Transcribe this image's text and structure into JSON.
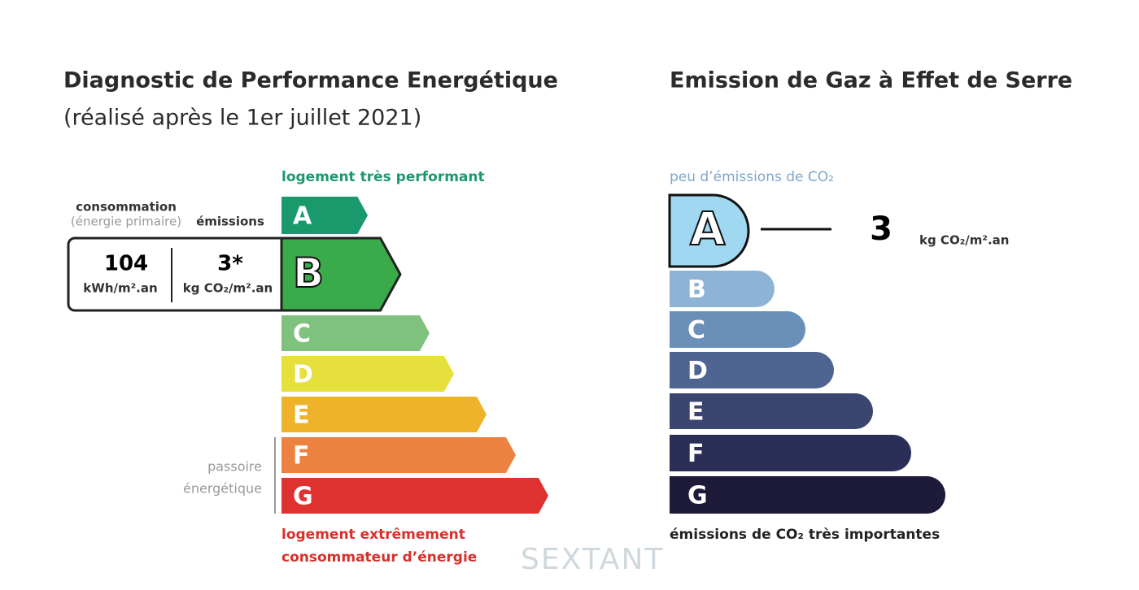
{
  "dpe": {
    "title": "Diagnostic de Performance Energétique",
    "subtitle": "(réalisé après le 1er juillet 2021)",
    "top_label": "logement très performant",
    "consumption_label": "consommation",
    "consumption_sublabel": "(énergie primaire)",
    "emissions_label": "émissions",
    "consumption_value": "104",
    "consumption_unit": "kWh/m².an",
    "emissions_value": "3*",
    "emissions_unit": "kg CO₂/m².an",
    "classes": [
      "A",
      "B",
      "C",
      "D",
      "E",
      "F",
      "G"
    ],
    "passoire_label": [
      "passoire",
      "énergétique"
    ],
    "bottom_label": [
      "logement extrêmement",
      "consommateur d’énergie"
    ]
  },
  "ges": {
    "title": "Emission de Gaz à Effet de Serre",
    "top_label": "peu d’émissions de CO₂",
    "value": "3",
    "unit": "kg CO₂/m².an",
    "classes": [
      "A",
      "B",
      "C",
      "D",
      "E",
      "F",
      "G"
    ],
    "bottom_label": "émissions de CO₂ très importantes"
  },
  "watermark": "SEXTANT"
}
